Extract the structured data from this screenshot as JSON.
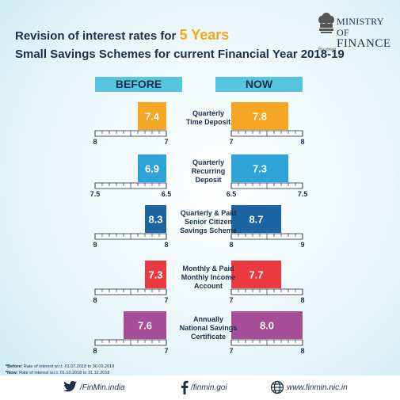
{
  "header": {
    "title_prefix": "Revision of interest rates for ",
    "title_highlight": "5 Years",
    "subtitle": "Small Savings Schemes for current Financial Year 2018-19",
    "logo_line1": "MINISTRY OF",
    "logo_line2": "FINANCE",
    "logo_hindi": "वित्त मंत्रालय"
  },
  "columns": {
    "before": "BEFORE",
    "now": "NOW"
  },
  "chart_data": {
    "type": "bar",
    "orientation": "horizontal",
    "title": "Revision of interest rates for 5 Years Small Savings Schemes for current Financial Year 2018-19",
    "series": [
      {
        "name": "BEFORE",
        "values": [
          7.4,
          6.9,
          8.3,
          7.3,
          7.6
        ]
      },
      {
        "name": "NOW",
        "values": [
          7.8,
          7.3,
          8.7,
          7.7,
          8.0
        ]
      }
    ],
    "categories": [
      "Quarterly Time Deposit",
      "Quarterly Recurring Deposit",
      "Quarterly & Paid Senior Citizen Savings Scheme",
      "Monthly & Paid Monthly Income Account",
      "Annually National Savings Certificate"
    ],
    "panels": [
      {
        "category_lines": [
          "Quarterly",
          "Time Deposit"
        ],
        "before": 7.4,
        "now": 7.8,
        "before_range": [
          8,
          7
        ],
        "now_range": [
          7,
          8
        ],
        "before_labels": [
          "8",
          "7"
        ],
        "now_labels": [
          "7",
          "8"
        ],
        "color": "#f5a623"
      },
      {
        "category_lines": [
          "Quarterly",
          "Recurring",
          "Deposit"
        ],
        "before": 6.9,
        "now": 7.3,
        "before_range": [
          7.5,
          6.5
        ],
        "now_range": [
          6.5,
          7.5
        ],
        "before_labels": [
          "7.5",
          "6.5"
        ],
        "now_labels": [
          "6.5",
          "7.5"
        ],
        "color": "#2ea3d7"
      },
      {
        "category_lines": [
          "Quarterly & Paid",
          "Senior Citizen",
          "Savings Scheme"
        ],
        "before": 8.3,
        "now": 8.7,
        "before_range": [
          9,
          8
        ],
        "now_range": [
          8,
          9
        ],
        "before_labels": [
          "9",
          "8"
        ],
        "now_labels": [
          "8",
          "9"
        ],
        "color": "#1a64a2"
      },
      {
        "category_lines": [
          "Monthly & Paid",
          "Monthly Income",
          "Account"
        ],
        "before": 7.3,
        "now": 7.7,
        "before_range": [
          8,
          7
        ],
        "now_range": [
          7,
          8
        ],
        "before_labels": [
          "8",
          "7"
        ],
        "now_labels": [
          "7",
          "8"
        ],
        "color": "#e83a3f"
      },
      {
        "category_lines": [
          "Annually",
          "National Savings",
          "Certificate"
        ],
        "before": 7.6,
        "now": 8.0,
        "before_range": [
          8,
          7
        ],
        "now_range": [
          7,
          8
        ],
        "before_labels": [
          "8",
          "7"
        ],
        "now_labels": [
          "7",
          "8"
        ],
        "color": "#a64d97"
      }
    ]
  },
  "footnotes": {
    "before_label": "*Before:",
    "before_text": " Rate of interest w.r.t. 01.07.2018 to 30.09.2018",
    "now_label": "*Now:",
    "now_text": " Rate of interest w.r.t. 01.10.2018 to 31.12.2018"
  },
  "footer": {
    "twitter": "/FinMin.india",
    "facebook": "/finmin.goi",
    "website": "www.finmin.nic.in"
  }
}
